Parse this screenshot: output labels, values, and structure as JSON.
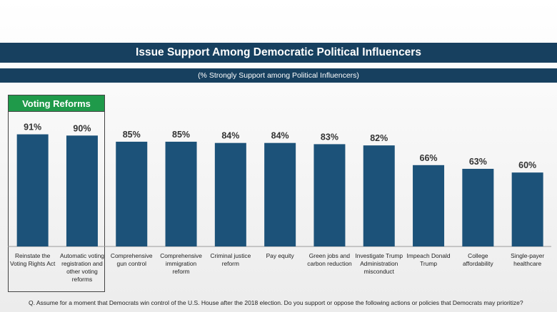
{
  "header": {
    "title": "Issue Support Among Democratic Political Influencers",
    "subtitle": "(% Strongly Support among Political Influencers)"
  },
  "group": {
    "label": "Voting Reforms"
  },
  "footnote": "Q. Assume for a moment that Democrats win control of the U.S. House after the 2018 election. Do you support or oppose the following actions or policies that Democrats may prioritize?",
  "colors": {
    "bar": "#1c5279",
    "header": "#17405f",
    "group": "#1f9a4a"
  },
  "chart_data": {
    "type": "bar",
    "unit": "%",
    "categories": [
      [
        "Reinstate the",
        "Voting Rights Act"
      ],
      [
        "Automatic voting",
        "registration and",
        "other voting",
        "reforms"
      ],
      [
        "Comprehensive",
        "gun control"
      ],
      [
        "Comprehensive",
        "immigration",
        "reform"
      ],
      [
        "Criminal justice",
        "reform"
      ],
      [
        "Pay equity"
      ],
      [
        "Green jobs and",
        "carbon reduction"
      ],
      [
        "Investigate Trump",
        "Administration",
        "misconduct"
      ],
      [
        "Impeach Donald",
        "Trump"
      ],
      [
        "College",
        "affordability"
      ],
      [
        "Single-payer",
        "healthcare"
      ]
    ],
    "values": [
      91,
      90,
      85,
      85,
      84,
      84,
      83,
      82,
      66,
      63,
      60
    ],
    "data_labels": [
      "91%",
      "90%",
      "85%",
      "85%",
      "84%",
      "84%",
      "83%",
      "82%",
      "66%",
      "63%",
      "60%"
    ],
    "ylim": [
      0,
      100
    ],
    "grid": false,
    "legend": false
  }
}
